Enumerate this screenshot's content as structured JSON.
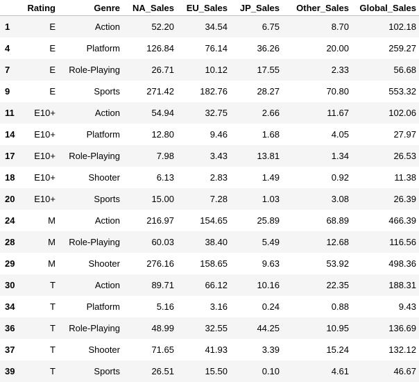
{
  "table": {
    "columns": [
      "",
      "Rating",
      "Genre",
      "NA_Sales",
      "EU_Sales",
      "JP_Sales",
      "Other_Sales",
      "Global_Sales"
    ],
    "rows": [
      [
        "1",
        "E",
        "Action",
        "52.20",
        "34.54",
        "6.75",
        "8.70",
        "102.18"
      ],
      [
        "4",
        "E",
        "Platform",
        "126.84",
        "76.14",
        "36.26",
        "20.00",
        "259.27"
      ],
      [
        "7",
        "E",
        "Role-Playing",
        "26.71",
        "10.12",
        "17.55",
        "2.33",
        "56.68"
      ],
      [
        "9",
        "E",
        "Sports",
        "271.42",
        "182.76",
        "28.27",
        "70.80",
        "553.32"
      ],
      [
        "11",
        "E10+",
        "Action",
        "54.94",
        "32.75",
        "2.66",
        "11.67",
        "102.06"
      ],
      [
        "14",
        "E10+",
        "Platform",
        "12.80",
        "9.46",
        "1.68",
        "4.05",
        "27.97"
      ],
      [
        "17",
        "E10+",
        "Role-Playing",
        "7.98",
        "3.43",
        "13.81",
        "1.34",
        "26.53"
      ],
      [
        "18",
        "E10+",
        "Shooter",
        "6.13",
        "2.83",
        "1.49",
        "0.92",
        "11.38"
      ],
      [
        "20",
        "E10+",
        "Sports",
        "15.00",
        "7.28",
        "1.03",
        "3.08",
        "26.39"
      ],
      [
        "24",
        "M",
        "Action",
        "216.97",
        "154.65",
        "25.89",
        "68.89",
        "466.39"
      ],
      [
        "28",
        "M",
        "Role-Playing",
        "60.03",
        "38.40",
        "5.49",
        "12.68",
        "116.56"
      ],
      [
        "29",
        "M",
        "Shooter",
        "276.16",
        "158.65",
        "9.63",
        "53.92",
        "498.36"
      ],
      [
        "30",
        "T",
        "Action",
        "89.71",
        "66.12",
        "10.16",
        "22.35",
        "188.31"
      ],
      [
        "34",
        "T",
        "Platform",
        "5.16",
        "3.16",
        "0.24",
        "0.88",
        "9.43"
      ],
      [
        "36",
        "T",
        "Role-Playing",
        "48.99",
        "32.55",
        "44.25",
        "10.95",
        "136.69"
      ],
      [
        "37",
        "T",
        "Shooter",
        "71.65",
        "41.93",
        "3.39",
        "15.24",
        "132.12"
      ],
      [
        "39",
        "T",
        "Sports",
        "26.51",
        "15.50",
        "0.10",
        "4.61",
        "46.67"
      ]
    ]
  }
}
